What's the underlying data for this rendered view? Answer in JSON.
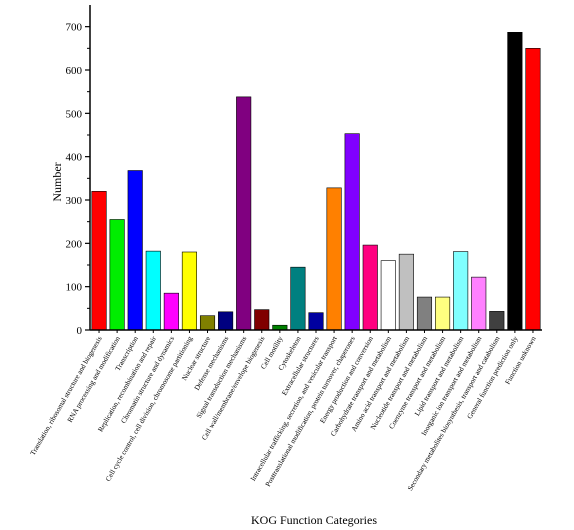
{
  "chart_data": {
    "type": "bar",
    "title": "",
    "xlabel": "KOG Function Categories",
    "ylabel": "Number",
    "ylim": [
      0,
      750
    ],
    "yticks": [
      0,
      100,
      200,
      300,
      400,
      500,
      600,
      700
    ],
    "grid": false,
    "legend": "none",
    "categories": [
      "Translation, ribosomal structure and biogenesis",
      "RNA processing and modification",
      "Transcription",
      "Replication, recombination and repair",
      "Chromatin structure and dynamics",
      "Cell cycle control, cell division, chromosome partitioning",
      "Nuclear structure",
      "Defense mechanisms",
      "Signal transduction mechanisms",
      "Cell wall/membrane/envelope biogenesis",
      "Cell motility",
      "Cytoskeleton",
      "Extracellular structures",
      "Intracellular trafficking, secretion, and vesicular transport",
      "Posttranslational modification, protein turnover, chaperones",
      "Energy production and conversion",
      "Carbohydrate transport and metabolism",
      "Amino acid transport and metabolism",
      "Nucleotide transport and metabolism",
      "Coenzyme transport and metabolism",
      "Lipid transport and metabolism",
      "Inorganic ion transport and metabolism",
      "Secondary metabolites biosynthesis, transport and catabolism",
      "General function prediction only",
      "Function unknown"
    ],
    "values": [
      320,
      255,
      368,
      182,
      85,
      180,
      33,
      42,
      538,
      47,
      11,
      145,
      40,
      328,
      453,
      196,
      160,
      175,
      76,
      76,
      181,
      122,
      43,
      687,
      650
    ],
    "colors": [
      "#ff0000",
      "#00ee00",
      "#0000ff",
      "#00ffff",
      "#ff00ff",
      "#ffff00",
      "#808000",
      "#000080",
      "#800080",
      "#800000",
      "#008000",
      "#008080",
      "#0000a0",
      "#ff8000",
      "#8000ff",
      "#ff0080",
      "#ffffff",
      "#c0c0c0",
      "#808080",
      "#ffff80",
      "#80ffff",
      "#ff80ff",
      "#404040",
      "#000000",
      "#ff0000"
    ]
  }
}
